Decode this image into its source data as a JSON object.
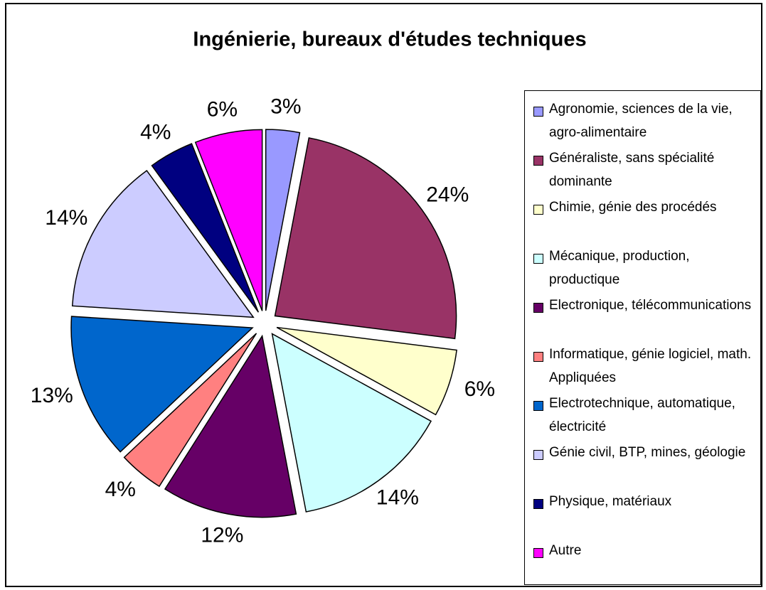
{
  "chart_data": {
    "type": "pie",
    "title": "Ingénierie, bureaux d'études techniques",
    "categories": [
      "Agronomie, sciences de la vie, agro-alimentaire",
      "Généraliste, sans spécialité dominante",
      "Chimie, génie des procédés",
      "Mécanique, production, productique",
      "Electronique, télécommunications",
      "Informatique, génie logiciel, math. Appliquées",
      "Electrotechnique, automatique, électricité",
      "Génie civil, BTP, mines, géologie",
      "Physique, matériaux",
      "Autre"
    ],
    "values": [
      3,
      24,
      6,
      14,
      12,
      4,
      13,
      14,
      4,
      6
    ],
    "value_labels": [
      "3%",
      "24%",
      "6%",
      "14%",
      "12%",
      "4%",
      "13%",
      "14%",
      "4%",
      "6%"
    ],
    "colors": [
      "#9999ff",
      "#993366",
      "#ffffcc",
      "#ccffff",
      "#660066",
      "#ff8080",
      "#0066cc",
      "#ccccff",
      "#000080",
      "#ff00ff"
    ],
    "legend": "right"
  }
}
